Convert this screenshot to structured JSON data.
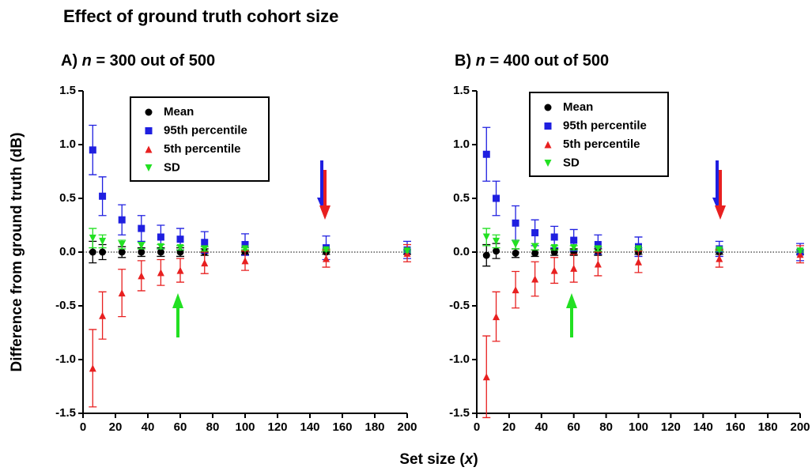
{
  "title": "Effect of ground truth cohort size",
  "ylabel": "Difference from ground truth (dB)",
  "xlabel_parts": [
    "Set size (",
    "x",
    ")"
  ],
  "chart_data": [
    {
      "type": "scatter",
      "title_parts": [
        "A) ",
        "n",
        " = 300 out of 500"
      ],
      "x": [
        6,
        12,
        24,
        36,
        48,
        60,
        75,
        100,
        150,
        200
      ],
      "xlim": [
        0,
        200
      ],
      "xticks": [
        0,
        20,
        40,
        60,
        80,
        100,
        120,
        140,
        160,
        180,
        200
      ],
      "ylim": [
        -1.5,
        1.5
      ],
      "yticks": [
        1.5,
        {
          "value": 1,
          "label": "1.0"
        },
        0.5,
        {
          "value": 0,
          "label": "0.0"
        },
        -0.5,
        {
          "value": -1,
          "label": "-1.0"
        },
        -1.5
      ],
      "series": [
        {
          "name": "Mean",
          "color": "#000000",
          "marker": "circle",
          "values": [
            0,
            0,
            0,
            0,
            0,
            0,
            0,
            0,
            0,
            0
          ],
          "errors": [
            0.1,
            0.07,
            0.05,
            0.04,
            0.04,
            0.04,
            0.03,
            0.02,
            0.02,
            0.02
          ]
        },
        {
          "name": "95th percentile",
          "color": "#1f1fe0",
          "marker": "square",
          "values": [
            0.95,
            0.52,
            0.3,
            0.22,
            0.14,
            0.12,
            0.09,
            0.07,
            0.04,
            0.02
          ],
          "errors": [
            0.23,
            0.18,
            0.14,
            0.12,
            0.11,
            0.1,
            0.1,
            0.1,
            0.11,
            0.08
          ]
        },
        {
          "name": "5th percentile",
          "color": "#e82020",
          "marker": "triangle-up",
          "values": [
            -1.08,
            -0.59,
            -0.38,
            -0.22,
            -0.19,
            -0.17,
            -0.1,
            -0.08,
            -0.06,
            -0.01
          ],
          "errors": [
            0.36,
            0.22,
            0.22,
            0.14,
            0.12,
            0.11,
            0.1,
            0.09,
            0.08,
            0.08
          ]
        },
        {
          "name": "SD",
          "color": "#22e022",
          "marker": "triangle-down",
          "values": [
            0.13,
            0.1,
            0.07,
            0.06,
            0.05,
            0.04,
            0.03,
            0.03,
            0.02,
            0.01
          ],
          "errors": [
            0.09,
            0.06,
            0.04,
            0.03,
            0.02,
            0.02,
            0.02,
            0.01,
            0.01,
            0.01
          ]
        }
      ]
    },
    {
      "type": "scatter",
      "title_parts": [
        "B) ",
        "n",
        " = 400 out of 500"
      ],
      "x": [
        6,
        12,
        24,
        36,
        48,
        60,
        75,
        100,
        150,
        200
      ],
      "xlim": [
        0,
        200
      ],
      "xticks": [
        0,
        20,
        40,
        60,
        80,
        100,
        120,
        140,
        160,
        180,
        200
      ],
      "ylim": [
        -1.5,
        1.5
      ],
      "yticks": [
        1.5,
        {
          "value": 1,
          "label": "1.0"
        },
        0.5,
        {
          "value": 0,
          "label": "0.0"
        },
        -0.5,
        {
          "value": -1,
          "label": "-1.0"
        },
        -1.5
      ],
      "series": [
        {
          "name": "Mean",
          "color": "#000000",
          "marker": "circle",
          "values": [
            -0.03,
            0.01,
            -0.01,
            -0.01,
            0,
            0,
            0,
            0,
            0,
            0
          ],
          "errors": [
            0.1,
            0.07,
            0.04,
            0.03,
            0.03,
            0.03,
            0.03,
            0.02,
            0.02,
            0.02
          ]
        },
        {
          "name": "95th percentile",
          "color": "#1f1fe0",
          "marker": "square",
          "values": [
            0.91,
            0.5,
            0.27,
            0.18,
            0.14,
            0.11,
            0.07,
            0.05,
            0.03,
            0
          ],
          "errors": [
            0.25,
            0.16,
            0.16,
            0.12,
            0.1,
            0.1,
            0.09,
            0.09,
            0.07,
            0.08
          ]
        },
        {
          "name": "5th percentile",
          "color": "#e82020",
          "marker": "triangle-up",
          "values": [
            -1.16,
            -0.6,
            -0.35,
            -0.25,
            -0.17,
            -0.15,
            -0.11,
            -0.09,
            -0.06,
            -0.02
          ],
          "errors": [
            0.38,
            0.23,
            0.17,
            0.16,
            0.12,
            0.13,
            0.11,
            0.1,
            0.08,
            0.08
          ]
        },
        {
          "name": "SD",
          "color": "#22e022",
          "marker": "triangle-down",
          "values": [
            0.14,
            0.1,
            0.07,
            0.05,
            0.04,
            0.04,
            0.03,
            0.03,
            0.02,
            0.01
          ],
          "errors": [
            0.08,
            0.06,
            0.04,
            0.03,
            0.02,
            0.02,
            0.02,
            0.01,
            0.01,
            0.01
          ]
        }
      ]
    }
  ]
}
